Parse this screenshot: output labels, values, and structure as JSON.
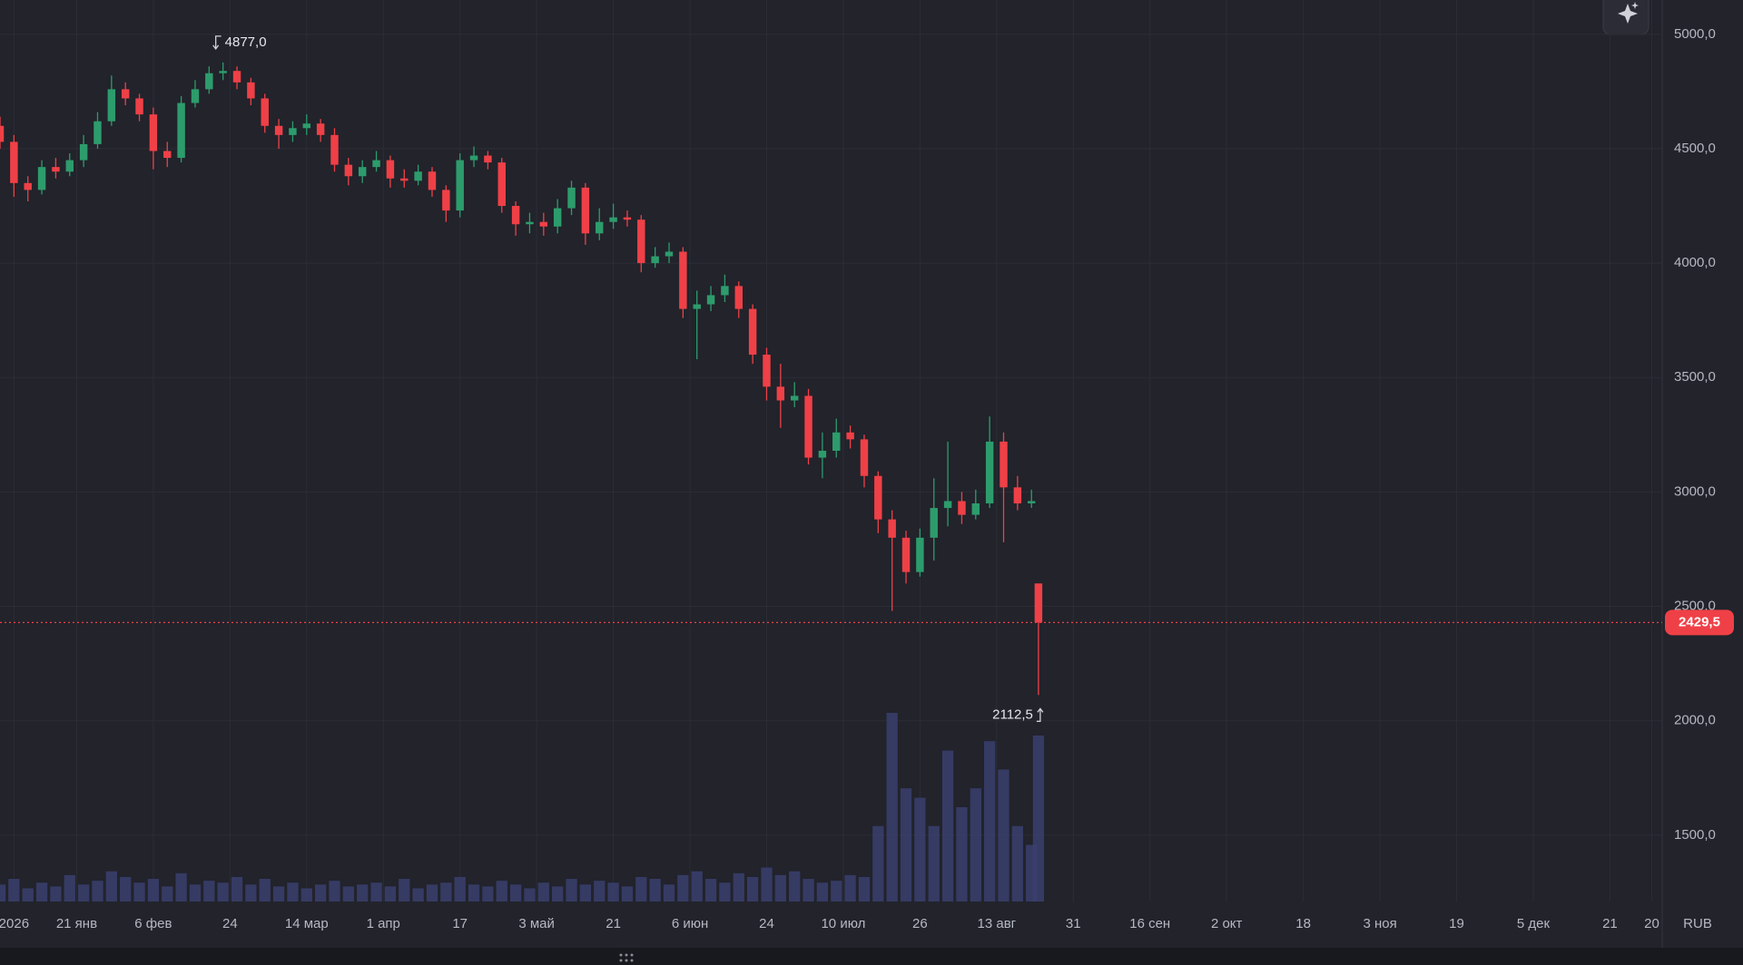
{
  "chart_data": {
    "type": "candlestick",
    "x": [
      -2,
      0,
      2,
      4,
      6,
      8,
      10,
      12,
      14,
      16,
      18,
      20,
      22,
      24,
      26,
      28,
      30,
      32,
      34,
      36,
      38,
      40,
      42,
      44,
      46,
      48,
      50,
      52,
      54,
      56,
      58,
      60,
      62,
      64,
      66,
      68,
      70,
      72,
      74,
      76,
      78,
      80,
      82,
      84,
      86,
      88,
      90,
      92,
      94,
      96,
      98,
      100,
      102,
      104,
      106,
      108,
      110,
      112,
      114,
      116,
      118,
      120,
      122,
      124,
      126,
      128,
      130,
      132,
      134,
      136,
      138,
      140,
      142,
      144,
      146,
      147
    ],
    "open": [
      4600,
      4530,
      4350,
      4320,
      4420,
      4400,
      4450,
      4520,
      4620,
      4760,
      4720,
      4650,
      4490,
      4460,
      4700,
      4760,
      4830,
      4840,
      4790,
      4720,
      4600,
      4560,
      4590,
      4610,
      4560,
      4430,
      4380,
      4420,
      4450,
      4370,
      4360,
      4400,
      4320,
      4230,
      4450,
      4470,
      4440,
      4250,
      4170,
      4180,
      4160,
      4240,
      4330,
      4130,
      4180,
      4200,
      4190,
      4000,
      4030,
      4050,
      3800,
      3820,
      3860,
      3900,
      3800,
      3600,
      3460,
      3400,
      3420,
      3150,
      3180,
      3260,
      3230,
      3070,
      2880,
      2800,
      2650,
      2800,
      2930,
      2960,
      2900,
      2950,
      3220,
      3020,
      2950,
      2600
    ],
    "high": [
      4640,
      4560,
      4380,
      4450,
      4460,
      4480,
      4560,
      4660,
      4820,
      4790,
      4740,
      4680,
      4530,
      4730,
      4800,
      4860,
      4877,
      4860,
      4810,
      4740,
      4630,
      4620,
      4650,
      4630,
      4590,
      4460,
      4450,
      4490,
      4470,
      4410,
      4430,
      4420,
      4340,
      4480,
      4510,
      4490,
      4460,
      4270,
      4220,
      4220,
      4280,
      4360,
      4350,
      4240,
      4260,
      4230,
      4210,
      4070,
      4090,
      4070,
      3880,
      3900,
      3950,
      3920,
      3820,
      3630,
      3560,
      3480,
      3450,
      3260,
      3320,
      3290,
      3250,
      3090,
      2920,
      2830,
      2840,
      3060,
      3220,
      3000,
      3010,
      3330,
      3260,
      3070,
      3010,
      2600
    ],
    "low": [
      4500,
      4290,
      4270,
      4300,
      4370,
      4380,
      4420,
      4500,
      4600,
      4690,
      4620,
      4410,
      4420,
      4440,
      4680,
      4740,
      4800,
      4760,
      4690,
      4570,
      4500,
      4530,
      4560,
      4530,
      4400,
      4340,
      4350,
      4400,
      4330,
      4330,
      4340,
      4290,
      4180,
      4200,
      4420,
      4410,
      4220,
      4120,
      4130,
      4120,
      4130,
      4210,
      4080,
      4100,
      4150,
      4160,
      3960,
      3980,
      4000,
      3760,
      3580,
      3790,
      3830,
      3760,
      3560,
      3400,
      3280,
      3370,
      3120,
      3060,
      3150,
      3190,
      3020,
      2820,
      2480,
      2600,
      2630,
      2700,
      2850,
      2860,
      2880,
      2930,
      2780,
      2920,
      2930,
      2112.5
    ],
    "close": [
      4530,
      4350,
      4320,
      4420,
      4400,
      4450,
      4520,
      4620,
      4760,
      4720,
      4650,
      4490,
      4460,
      4700,
      4760,
      4830,
      4840,
      4790,
      4720,
      4600,
      4560,
      4590,
      4610,
      4560,
      4430,
      4380,
      4420,
      4450,
      4370,
      4360,
      4400,
      4320,
      4230,
      4450,
      4470,
      4440,
      4250,
      4170,
      4180,
      4160,
      4240,
      4330,
      4130,
      4180,
      4200,
      4190,
      4000,
      4030,
      4050,
      3800,
      3820,
      3860,
      3900,
      3800,
      3600,
      3460,
      3400,
      3420,
      3150,
      3180,
      3260,
      3230,
      3070,
      2880,
      2800,
      2650,
      2800,
      2930,
      2960,
      2900,
      2950,
      3220,
      3020,
      2950,
      2960,
      2429.5
    ],
    "volume": [
      9,
      12,
      7,
      10,
      8,
      14,
      9,
      11,
      16,
      13,
      10,
      12,
      8,
      15,
      9,
      11,
      10,
      13,
      9,
      12,
      8,
      10,
      7,
      9,
      11,
      8,
      9,
      10,
      8,
      12,
      7,
      9,
      10,
      13,
      9,
      8,
      11,
      9,
      7,
      10,
      8,
      12,
      9,
      11,
      10,
      8,
      13,
      12,
      9,
      14,
      16,
      12,
      10,
      15,
      13,
      18,
      14,
      16,
      12,
      10,
      11,
      14,
      13,
      40,
      100,
      60,
      55,
      40,
      80,
      50,
      60,
      85,
      70,
      40,
      30,
      88
    ],
    "up_color": "#2d9c6c",
    "down_color": "#ef4047",
    "volume_color": "#3a3f6e",
    "xlim": [
      -2,
      236.5
    ],
    "ylim": [
      1210,
      5150
    ],
    "xticks": [
      {
        "value": 0,
        "label": "2026"
      },
      {
        "value": 9,
        "label": "21 янв"
      },
      {
        "value": 20,
        "label": "6 фев"
      },
      {
        "value": 31,
        "label": "24"
      },
      {
        "value": 42,
        "label": "14 мар"
      },
      {
        "value": 53,
        "label": "1 апр"
      },
      {
        "value": 64,
        "label": "17"
      },
      {
        "value": 75,
        "label": "3 май"
      },
      {
        "value": 86,
        "label": "21"
      },
      {
        "value": 97,
        "label": "6 июн"
      },
      {
        "value": 108,
        "label": "24"
      },
      {
        "value": 119,
        "label": "10 июл"
      },
      {
        "value": 130,
        "label": "26"
      },
      {
        "value": 141,
        "label": "13 авг"
      },
      {
        "value": 152,
        "label": "31"
      },
      {
        "value": 163,
        "label": "16 сен"
      },
      {
        "value": 174,
        "label": "2 окт"
      },
      {
        "value": 185,
        "label": "18"
      },
      {
        "value": 196,
        "label": "3 ноя"
      },
      {
        "value": 207,
        "label": "19"
      },
      {
        "value": 218,
        "label": "5 дек"
      },
      {
        "value": 229,
        "label": "21"
      },
      {
        "value": 235,
        "label": "20"
      }
    ],
    "yticks": [
      {
        "value": 1500,
        "label": "1500,0"
      },
      {
        "value": 2000,
        "label": "2000,0"
      },
      {
        "value": 2500,
        "label": "2500,0"
      },
      {
        "value": 3000,
        "label": "3000,0"
      },
      {
        "value": 3500,
        "label": "3500,0"
      },
      {
        "value": 4000,
        "label": "4000,0"
      },
      {
        "value": 4500,
        "label": "4500,0"
      },
      {
        "value": 5000,
        "label": "5000,0"
      }
    ],
    "grid": true,
    "max_marker": {
      "value": 4877,
      "label": "4877,0"
    },
    "min_marker": {
      "value": 2112.5,
      "label": "2112,5"
    },
    "last_price": {
      "value": 2429.5,
      "label": "2429,5"
    },
    "currency": "RUB"
  }
}
